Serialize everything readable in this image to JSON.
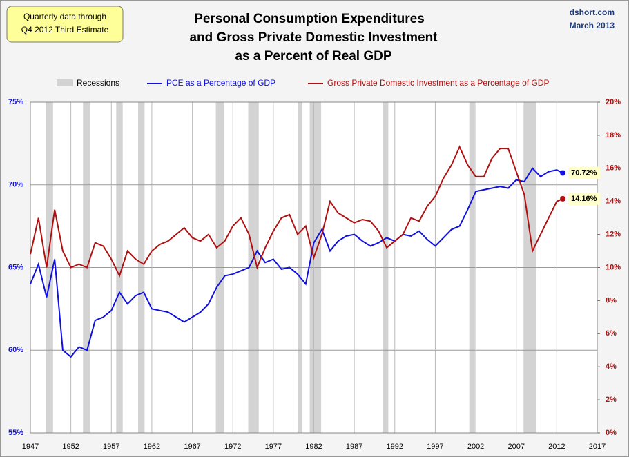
{
  "chart_data": {
    "type": "line",
    "title": [
      "Personal Consumption Expenditures",
      "and Gross Private Domestic Investment",
      "as a Percent of Real GDP"
    ],
    "note": [
      "Quarterly data through",
      "Q4 2012 Third Estimate"
    ],
    "source": [
      "dshort.com",
      "March 2013"
    ],
    "recessions": {
      "name": "Recessions",
      "color": "#d3d3d3",
      "spans": [
        [
          1948.9,
          1949.8
        ],
        [
          1953.5,
          1954.4
        ],
        [
          1957.6,
          1958.4
        ],
        [
          1960.3,
          1961.1
        ],
        [
          1969.9,
          1970.9
        ],
        [
          1973.9,
          1975.2
        ],
        [
          1980.0,
          1980.6
        ],
        [
          1981.5,
          1982.9
        ],
        [
          1990.5,
          1991.2
        ],
        [
          2001.2,
          2001.9
        ],
        [
          2007.9,
          2009.5
        ]
      ]
    },
    "x": [
      1947,
      1948,
      1949,
      1950,
      1951,
      1952,
      1953,
      1954,
      1955,
      1956,
      1957,
      1958,
      1959,
      1960,
      1961,
      1962,
      1963,
      1964,
      1965,
      1966,
      1967,
      1968,
      1969,
      1970,
      1971,
      1972,
      1973,
      1974,
      1975,
      1976,
      1977,
      1978,
      1979,
      1980,
      1981,
      1982,
      1983,
      1984,
      1985,
      1986,
      1987,
      1988,
      1989,
      1990,
      1991,
      1992,
      1993,
      1994,
      1995,
      1996,
      1997,
      1998,
      1999,
      2000,
      2001,
      2002,
      2003,
      2004,
      2005,
      2006,
      2007,
      2008,
      2009,
      2010,
      2011,
      2012,
      2012.75
    ],
    "series": [
      {
        "name": "PCE as a Percentage of GDP",
        "color": "#1010e0",
        "axis": "y",
        "values": [
          64.0,
          65.2,
          63.2,
          65.5,
          60.0,
          59.6,
          60.2,
          60.0,
          61.8,
          62.0,
          62.4,
          63.5,
          62.8,
          63.3,
          63.5,
          62.5,
          62.4,
          62.3,
          62.0,
          61.7,
          62.0,
          62.3,
          62.8,
          63.8,
          64.5,
          64.6,
          64.8,
          65.0,
          66.0,
          65.3,
          65.5,
          64.9,
          65.0,
          64.6,
          64.0,
          66.5,
          67.3,
          66.0,
          66.6,
          66.9,
          67.0,
          66.6,
          66.3,
          66.5,
          66.8,
          66.6,
          67.0,
          66.9,
          67.2,
          66.7,
          66.3,
          66.8,
          67.3,
          67.5,
          68.5,
          69.6,
          69.7,
          69.8,
          69.9,
          69.8,
          70.3,
          70.2,
          71.0,
          70.5,
          70.8,
          70.9,
          70.72
        ],
        "value_labels": [
          null,
          null,
          null,
          null,
          null,
          null,
          null,
          null,
          null,
          null,
          null,
          null,
          null,
          null,
          null,
          null,
          null,
          null,
          null,
          null,
          null,
          null,
          null,
          null,
          null,
          null,
          null,
          null,
          null,
          null,
          null,
          null,
          null,
          null,
          null,
          null,
          null,
          null,
          null,
          null,
          null,
          null,
          null,
          null,
          null,
          null,
          null,
          null,
          null,
          null,
          null,
          null,
          null,
          null,
          null,
          null,
          null,
          null,
          null,
          null,
          null,
          null,
          null,
          null,
          null,
          null,
          "70.72%"
        ]
      },
      {
        "name": "Gross Private Domestic Investment as a Percentage of GDP",
        "color": "#b01010",
        "axis": "y2",
        "values": [
          10.8,
          13.0,
          10.0,
          13.5,
          11.0,
          10.0,
          10.2,
          10.0,
          11.5,
          11.3,
          10.5,
          9.5,
          11.0,
          10.5,
          10.2,
          11.0,
          11.4,
          11.6,
          12.0,
          12.4,
          11.8,
          11.6,
          12.0,
          11.2,
          11.6,
          12.5,
          13.0,
          12.0,
          10.0,
          11.2,
          12.2,
          13.0,
          13.2,
          12.0,
          12.5,
          10.6,
          12.0,
          14.0,
          13.3,
          13.0,
          12.7,
          12.9,
          12.8,
          12.2,
          11.2,
          11.6,
          12.0,
          13.0,
          12.8,
          13.7,
          14.3,
          15.4,
          16.2,
          17.3,
          16.2,
          15.5,
          15.5,
          16.6,
          17.2,
          17.2,
          15.8,
          14.4,
          11.0,
          12.0,
          13.0,
          14.0,
          14.16
        ],
        "value_labels": [
          null,
          null,
          null,
          null,
          null,
          null,
          null,
          null,
          null,
          null,
          null,
          null,
          null,
          null,
          null,
          null,
          null,
          null,
          null,
          null,
          null,
          null,
          null,
          null,
          null,
          null,
          null,
          null,
          null,
          null,
          null,
          null,
          null,
          null,
          null,
          null,
          null,
          null,
          null,
          null,
          null,
          null,
          null,
          null,
          null,
          null,
          null,
          null,
          null,
          null,
          null,
          null,
          null,
          null,
          null,
          null,
          null,
          null,
          null,
          null,
          null,
          null,
          null,
          null,
          null,
          null,
          "14.16%"
        ]
      }
    ],
    "xlim": [
      1947,
      2017
    ],
    "xticks": [
      1947,
      1952,
      1957,
      1962,
      1967,
      1972,
      1977,
      1982,
      1987,
      1992,
      1997,
      2002,
      2007,
      2012,
      2017
    ],
    "ylim": [
      55,
      75
    ],
    "yticks": [
      {
        "value": 55,
        "label": "55%"
      },
      {
        "value": 60,
        "label": "60%"
      },
      {
        "value": 65,
        "label": "65%"
      },
      {
        "value": 70,
        "label": "70%"
      },
      {
        "value": 75,
        "label": "75%"
      }
    ],
    "y2lim": [
      0,
      20
    ],
    "y2ticks": [
      {
        "value": 0,
        "label": "0%"
      },
      {
        "value": 2,
        "label": "2%"
      },
      {
        "value": 4,
        "label": "4%"
      },
      {
        "value": 6,
        "label": "6%"
      },
      {
        "value": 8,
        "label": "8%"
      },
      {
        "value": 10,
        "label": "10%"
      },
      {
        "value": 12,
        "label": "12%"
      },
      {
        "value": 14,
        "label": "14%"
      },
      {
        "value": 16,
        "label": "16%"
      },
      {
        "value": 18,
        "label": "18%"
      },
      {
        "value": 20,
        "label": "20%"
      }
    ],
    "grid": true
  }
}
